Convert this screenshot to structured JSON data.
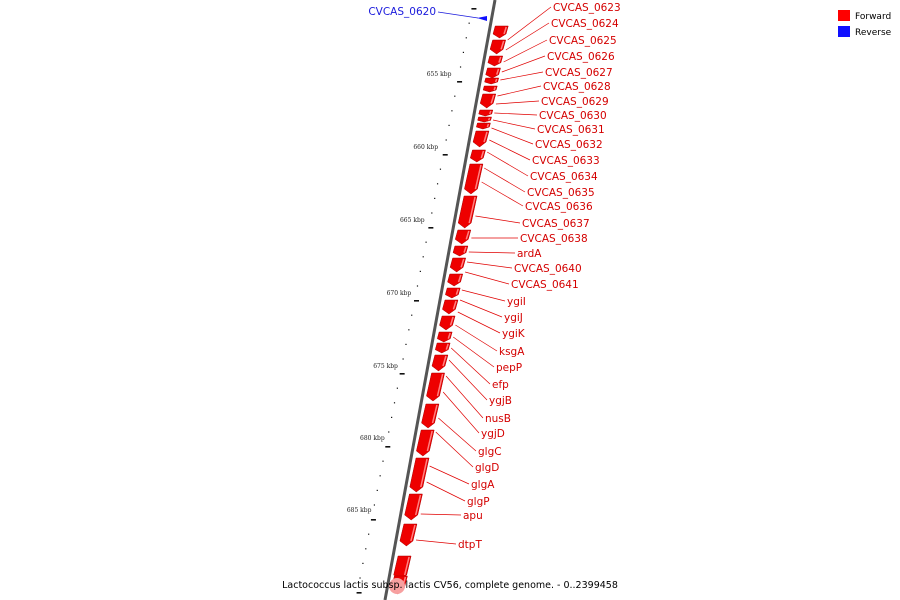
{
  "caption": "Lactococcus lactis subsp. lactis CV56, complete genome. - 0..2399458",
  "legend": [
    {
      "label": "Forward",
      "color": "#ff0000"
    },
    {
      "label": "Reverse",
      "color": "#1010ff"
    }
  ],
  "scale_labels": [
    "655 kbp",
    "660 kbp",
    "665 kbp",
    "670 kbp",
    "675 kbp",
    "680 kbp",
    "685 kbp"
  ],
  "reverse_genes": [
    "CVCAS_0620"
  ],
  "forward_genes": [
    "CVCAS_0623",
    "CVCAS_0624",
    "CVCAS_0625",
    "CVCAS_0626",
    "CVCAS_0627",
    "CVCAS_0628",
    "CVCAS_0629",
    "CVCAS_0630",
    "CVCAS_0631",
    "CVCAS_0632",
    "CVCAS_0633",
    "CVCAS_0634",
    "CVCAS_0635",
    "CVCAS_0636",
    "CVCAS_0637",
    "CVCAS_0638",
    "ardA",
    "CVCAS_0640",
    "CVCAS_0641",
    "ygiI",
    "ygiJ",
    "ygiK",
    "ksgA",
    "pepP",
    "efp",
    "ygjB",
    "nusB",
    "ygjD",
    "glgC",
    "glgD",
    "glgA",
    "glgP",
    "apu",
    "dtpT"
  ]
}
